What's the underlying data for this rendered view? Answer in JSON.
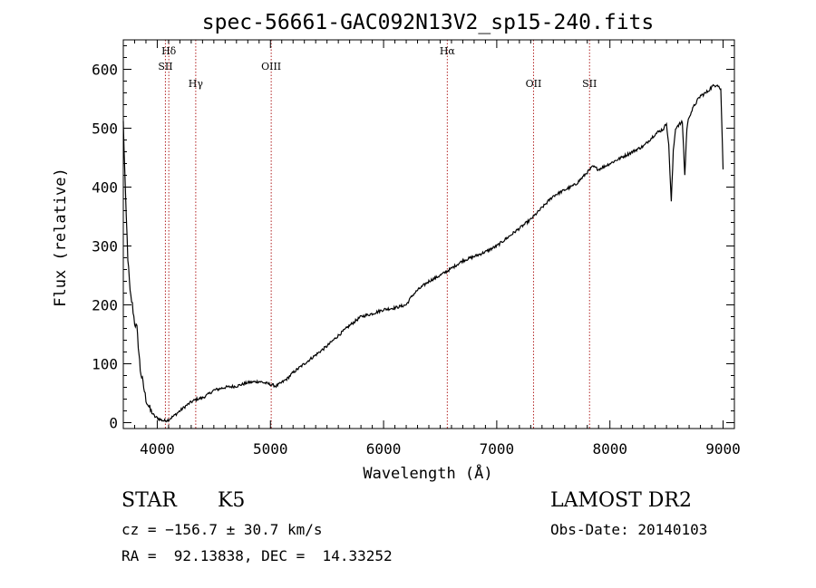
{
  "chart_data": {
    "type": "line",
    "title": "spec-56661-GAC092N13V2_sp15-240.fits",
    "xlabel": "Wavelength (Å)",
    "ylabel": "Flux (relative)",
    "xlim": [
      3700,
      9100
    ],
    "ylim": [
      -10,
      650
    ],
    "xticks": [
      4000,
      5000,
      6000,
      7000,
      8000,
      9000
    ],
    "yticks": [
      0,
      100,
      200,
      300,
      400,
      500,
      600
    ],
    "line_color": "#000000",
    "marker_color": "#b22222",
    "lines": [
      {
        "label": "Hδ",
        "wavelength": 4102,
        "tier": 0
      },
      {
        "label": "SII",
        "wavelength": 4072,
        "tier": 1
      },
      {
        "label": "Hγ",
        "wavelength": 4340,
        "tier": 2
      },
      {
        "label": "OIII",
        "wavelength": 5007,
        "tier": 1
      },
      {
        "label": "Hα",
        "wavelength": 6563,
        "tier": 0
      },
      {
        "label": "OII",
        "wavelength": 7325,
        "tier": 2
      },
      {
        "label": "SII",
        "wavelength": 7820,
        "tier": 2
      }
    ],
    "series": [
      {
        "x": [
          3700,
          3720,
          3740,
          3760,
          3780,
          3800,
          3820,
          3850,
          3880,
          3900,
          3920,
          3940,
          3960,
          3980,
          4000,
          4030,
          4060,
          4100,
          4150,
          4200,
          4250,
          4300,
          4350,
          4400,
          4450,
          4500,
          4600,
          4700,
          4800,
          4900,
          5000,
          5050,
          5100,
          5150,
          5200,
          5300,
          5400,
          5500,
          5600,
          5700,
          5800,
          5900,
          6000,
          6100,
          6200,
          6250,
          6300,
          6400,
          6500,
          6600,
          6700,
          6800,
          6900,
          7000,
          7100,
          7200,
          7300,
          7400,
          7500,
          7600,
          7700,
          7800,
          7850,
          7900,
          8000,
          8100,
          8200,
          8300,
          8400,
          8480,
          8500,
          8520,
          8542,
          8560,
          8580,
          8600,
          8640,
          8662,
          8680,
          8700,
          8750,
          8800,
          8850,
          8900,
          8950,
          8980,
          9000
        ],
        "y": [
          510,
          380,
          280,
          220,
          200,
          170,
          160,
          90,
          60,
          40,
          30,
          20,
          15,
          10,
          8,
          5,
          3,
          5,
          12,
          20,
          28,
          35,
          40,
          42,
          48,
          55,
          60,
          62,
          68,
          70,
          65,
          62,
          68,
          75,
          85,
          100,
          115,
          130,
          148,
          165,
          180,
          185,
          192,
          195,
          200,
          215,
          225,
          240,
          250,
          262,
          275,
          282,
          290,
          300,
          315,
          330,
          345,
          365,
          385,
          395,
          405,
          425,
          435,
          430,
          440,
          450,
          460,
          470,
          490,
          500,
          510,
          470,
          375,
          460,
          500,
          505,
          510,
          420,
          500,
          520,
          540,
          555,
          560,
          570,
          575,
          565,
          430
        ]
      }
    ]
  },
  "info": {
    "object_class": "STAR",
    "subclass": "K5",
    "survey": "LAMOST DR2",
    "redshift": "cz = −156.7 ± 30.7 km/s",
    "obs_date": "Obs-Date: 20140103",
    "coords": "RA =  92.13838, DEC =  14.33252"
  }
}
